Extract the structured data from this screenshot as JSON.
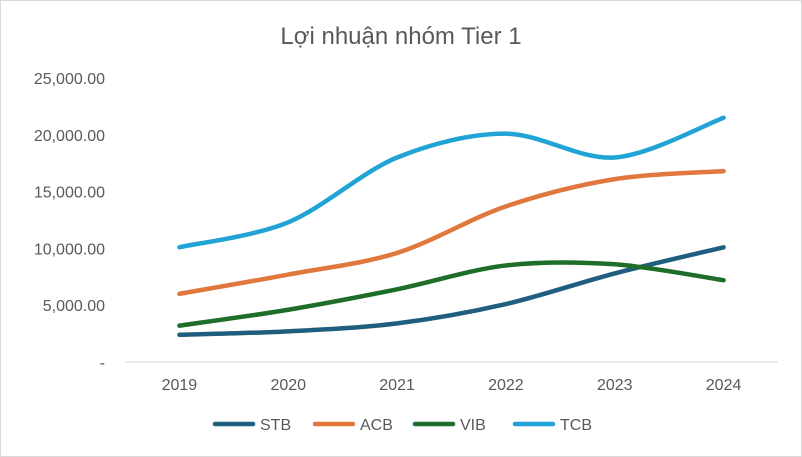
{
  "chart_data": {
    "type": "line",
    "title": "Lợi nhuận nhóm Tier 1",
    "xlabel": "",
    "ylabel": "",
    "categories": [
      "2019",
      "2020",
      "2021",
      "2022",
      "2023",
      "2024"
    ],
    "ylim": [
      0,
      25000
    ],
    "yticks": [
      0,
      5000,
      10000,
      15000,
      20000,
      25000
    ],
    "ytick_labels": [
      "-",
      "5,000.00",
      "10,000.00",
      "15,000.00",
      "20,000.00",
      "25,000.00"
    ],
    "grid": false,
    "legend_position": "bottom",
    "series": [
      {
        "name": "STB",
        "color": "#1f5e7e",
        "values": [
          2400,
          2700,
          3400,
          5100,
          7800,
          10100
        ]
      },
      {
        "name": "ACB",
        "color": "#e0773d",
        "values": [
          6000,
          7700,
          9600,
          13700,
          16100,
          16800
        ]
      },
      {
        "name": "VIB",
        "color": "#1e6e2a",
        "values": [
          3200,
          4600,
          6400,
          8500,
          8600,
          7200
        ]
      },
      {
        "name": "TCB",
        "color": "#21a3d6",
        "values": [
          10100,
          12300,
          18000,
          20100,
          18000,
          21500
        ]
      }
    ]
  }
}
